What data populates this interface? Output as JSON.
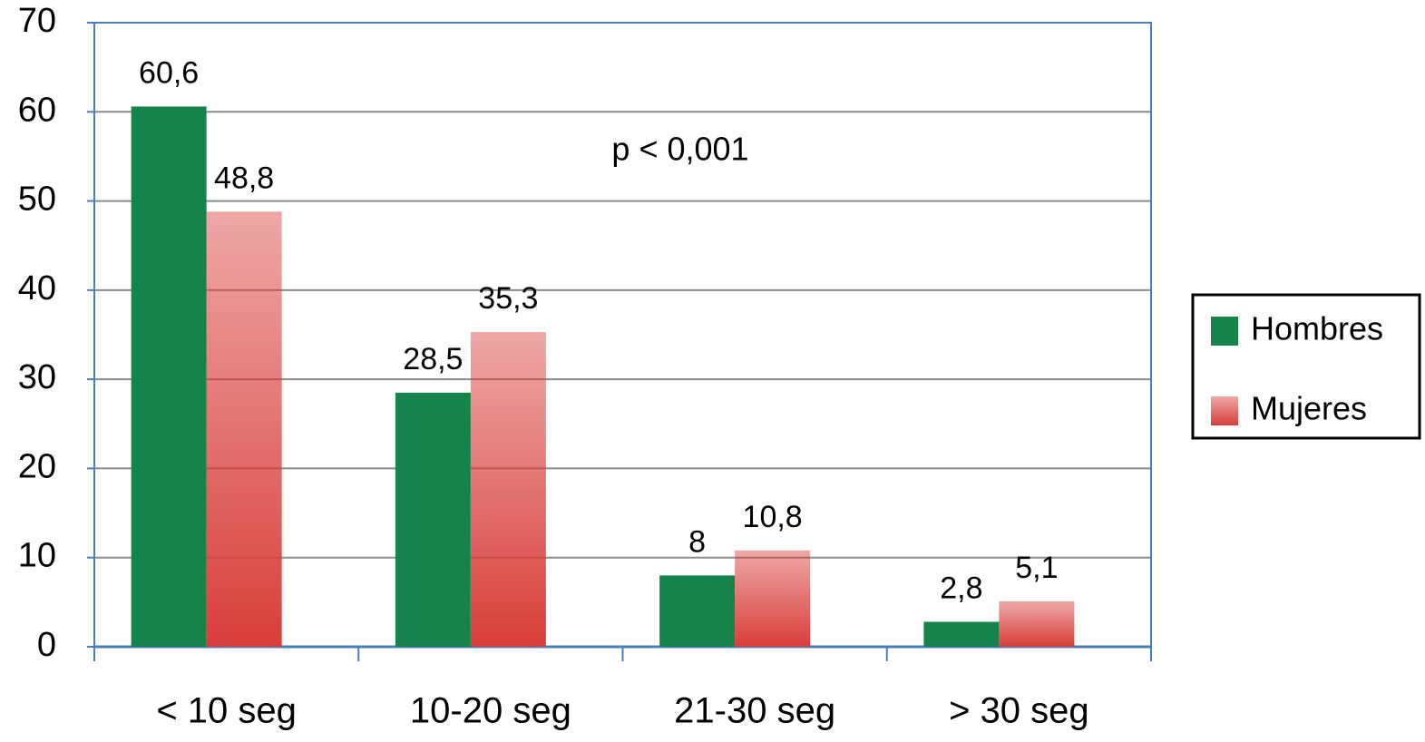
{
  "chart_data": {
    "type": "bar",
    "categories": [
      "< 10 seg",
      "10-20 seg",
      "21-30 seg",
      "> 30 seg"
    ],
    "series": [
      {
        "name": "Hombres",
        "color": "#16844a",
        "values": [
          60.6,
          28.5,
          8,
          2.8
        ],
        "value_labels": [
          "60,6",
          "28,5",
          "8",
          "2,8"
        ]
      },
      {
        "name": "Mujeres",
        "color": "#d83e3a",
        "values": [
          48.8,
          35.3,
          10.8,
          5.1
        ],
        "value_labels": [
          "48,8",
          "35,3",
          "10,8",
          "5,1"
        ]
      }
    ],
    "annotation": "p < 0,001",
    "ylim": [
      0,
      70
    ],
    "yticks": [
      0,
      10,
      20,
      30,
      40,
      50,
      60,
      70
    ],
    "grid": true,
    "legend": "right"
  }
}
